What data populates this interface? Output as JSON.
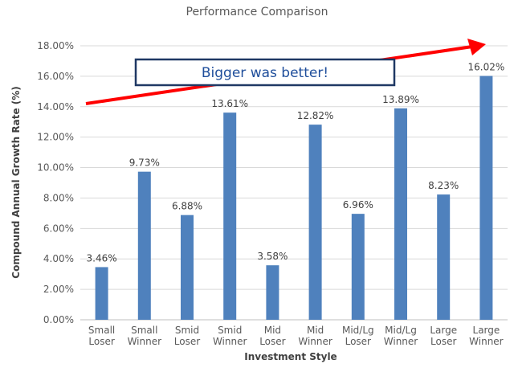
{
  "chart_data": {
    "type": "bar",
    "title": "Performance Comparison",
    "xlabel": "Investment Style",
    "ylabel": "Compound Annual Growth Rate (%)",
    "categories": [
      [
        "Small",
        "Loser"
      ],
      [
        "Small",
        "Winner"
      ],
      [
        "Smid",
        "Loser"
      ],
      [
        "Smid",
        "Winner"
      ],
      [
        "Mid",
        "Loser"
      ],
      [
        "Mid",
        "Winner"
      ],
      [
        "Mid/Lg",
        "Loser"
      ],
      [
        "Mid/Lg",
        "Winner"
      ],
      [
        "Large",
        "Loser"
      ],
      [
        "Large",
        "Winner"
      ]
    ],
    "values": [
      3.46,
      9.73,
      6.88,
      13.61,
      3.58,
      12.82,
      6.96,
      13.89,
      8.23,
      16.02
    ],
    "data_labels": [
      "3.46%",
      "9.73%",
      "6.88%",
      "13.61%",
      "3.58%",
      "12.82%",
      "6.96%",
      "13.89%",
      "8.23%",
      "16.02%"
    ],
    "ylim": [
      0,
      18
    ],
    "yticks": [
      0,
      2,
      4,
      6,
      8,
      10,
      12,
      14,
      16,
      18
    ],
    "ytick_labels": [
      "0.00%",
      "2.00%",
      "4.00%",
      "6.00%",
      "8.00%",
      "10.00%",
      "12.00%",
      "14.00%",
      "16.00%",
      "18.00%"
    ],
    "grid": true,
    "bar_color": "#4f81bd",
    "annotation": {
      "text": "Bigger was better!",
      "arrow_color": "#ff0000",
      "box_border_color": "#1f3864"
    }
  }
}
